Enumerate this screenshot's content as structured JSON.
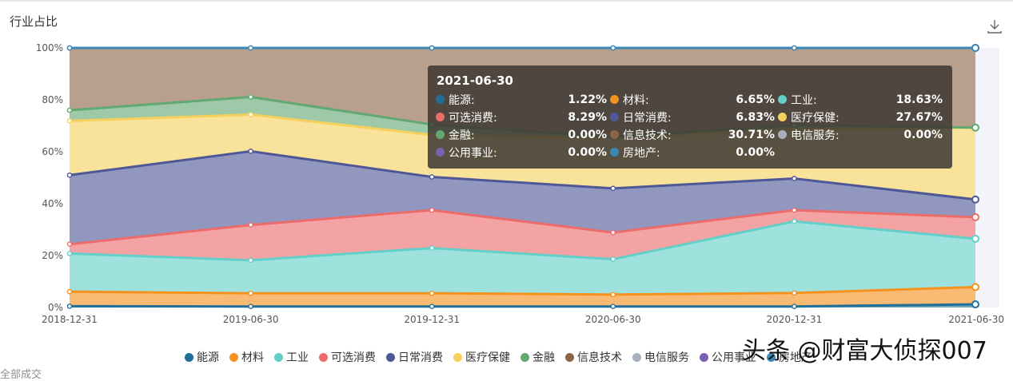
{
  "title": "行业占比",
  "download_icon": "download-icon",
  "chart_data": {
    "type": "area",
    "stacked": true,
    "percent": true,
    "x": [
      "2018-12-31",
      "2019-06-30",
      "2019-12-31",
      "2020-06-30",
      "2020-12-31",
      "2021-06-30"
    ],
    "ylim": [
      0,
      100
    ],
    "yticks": [
      "0%",
      "20%",
      "40%",
      "60%",
      "80%",
      "100%"
    ],
    "grid": false,
    "legend_position": "bottom",
    "series": [
      {
        "name": "能源",
        "color": "#1f6f9a",
        "values": [
          0.5,
          0.4,
          0.4,
          0.4,
          0.4,
          1.22
        ]
      },
      {
        "name": "材料",
        "color": "#f5921e",
        "values": [
          5.6,
          5.1,
          5.1,
          4.6,
          5.2,
          6.65
        ]
      },
      {
        "name": "工业",
        "color": "#62cfc8",
        "values": [
          14.7,
          12.7,
          17.4,
          13.6,
          27.6,
          18.63
        ]
      },
      {
        "name": "可选消费",
        "color": "#ec6b6b",
        "values": [
          3.6,
          13.6,
          14.6,
          10.3,
          4.3,
          8.29
        ]
      },
      {
        "name": "日常消费",
        "color": "#4e5797",
        "values": [
          26.6,
          28.4,
          12.8,
          17.0,
          12.2,
          6.83
        ]
      },
      {
        "name": "医疗保健",
        "color": "#f5d05a",
        "values": [
          20.9,
          14.1,
          16.2,
          19.4,
          19.0,
          27.67
        ]
      },
      {
        "name": "金融",
        "color": "#62a872",
        "values": [
          4.1,
          6.8,
          4.0,
          0.3,
          1.6,
          0.0
        ]
      },
      {
        "name": "信息技术",
        "color": "#8c6547",
        "values": [
          24.0,
          18.9,
          29.5,
          34.4,
          29.7,
          30.71
        ]
      },
      {
        "name": "电信服务",
        "color": "#a7b0bc",
        "values": [
          0,
          0,
          0,
          0,
          0,
          0.0
        ]
      },
      {
        "name": "公用事业",
        "color": "#7b5fb3",
        "values": [
          0,
          0,
          0,
          0,
          0,
          0.0
        ]
      },
      {
        "name": "房地产",
        "color": "#3b88b5",
        "values": [
          0,
          0,
          0,
          0,
          0,
          0.0
        ]
      }
    ],
    "legend": [
      "能源",
      "材料",
      "工业",
      "可选消费",
      "日常消费",
      "医疗保健",
      "金融",
      "信息技术",
      "电信服务",
      "公用事业",
      "房地产"
    ]
  },
  "tooltip": {
    "date": "2021-06-30",
    "items": [
      {
        "name": "能源:",
        "value": "1.22%",
        "color": "#1f6f9a"
      },
      {
        "name": "材料:",
        "value": "6.65%",
        "color": "#f5921e"
      },
      {
        "name": "工业:",
        "value": "18.63%",
        "color": "#62cfc8"
      },
      {
        "name": "可选消费:",
        "value": "8.29%",
        "color": "#ec6b6b"
      },
      {
        "name": "日常消费:",
        "value": "6.83%",
        "color": "#4e5797"
      },
      {
        "name": "医疗保健:",
        "value": "27.67%",
        "color": "#f5d05a"
      },
      {
        "name": "金融:",
        "value": "0.00%",
        "color": "#62a872"
      },
      {
        "name": "信息技术:",
        "value": "30.71%",
        "color": "#8c6547"
      },
      {
        "name": "电信服务:",
        "value": "0.00%",
        "color": "#a7b0bc"
      },
      {
        "name": "公用事业:",
        "value": "0.00%",
        "color": "#7b5fb3"
      },
      {
        "name": "房地产:",
        "value": "0.00%",
        "color": "#3b88b5"
      }
    ]
  },
  "watermark": "头条 @财富大侦探007",
  "cut_text": "全部成交"
}
